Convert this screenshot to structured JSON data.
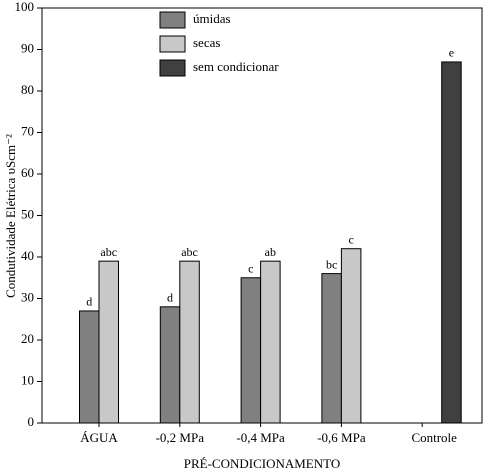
{
  "chart_data": {
    "type": "bar",
    "x_label": "PRÉ-CONDICIONAMENTO",
    "y_label": "Condutividade Elétrica  υScm⁻²",
    "categories": [
      "ÁGUA",
      "-0,2 MPa",
      "-0,4 MPa",
      "-0,6 MPa",
      "Controle"
    ],
    "series": [
      {
        "name": "úmidas",
        "color": "#808080",
        "values": [
          27,
          28,
          35,
          36,
          null
        ],
        "letters": [
          "d",
          "d",
          "c",
          "bc",
          null
        ]
      },
      {
        "name": "secas",
        "color": "#c8c8c8",
        "values": [
          39,
          39,
          39,
          42,
          null
        ],
        "letters": [
          "abc",
          "abc",
          "ab",
          "c",
          null
        ]
      },
      {
        "name": "sem condicionar",
        "color": "#404040",
        "values": [
          null,
          null,
          null,
          null,
          87
        ],
        "letters": [
          null,
          null,
          null,
          null,
          "e"
        ]
      }
    ],
    "ylim": [
      0,
      100
    ],
    "yticks": [
      0,
      10,
      20,
      30,
      40,
      50,
      60,
      70,
      80,
      90,
      100
    ]
  }
}
